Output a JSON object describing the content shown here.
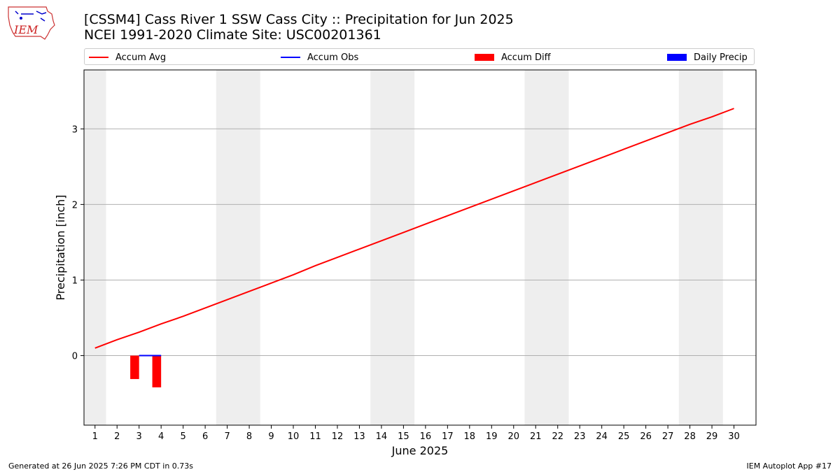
{
  "header": {
    "logo_text": "IEM",
    "title_line1": "[CSSM4] Cass River 1 SSW Cass City :: Precipitation for Jun 2025",
    "title_line2": "NCEI 1991-2020 Climate Site: USC00201361"
  },
  "footer": {
    "generated": "Generated at 26 Jun 2025 7:26 PM CDT in 0.73s",
    "app": "IEM Autoplot App #17"
  },
  "chart_data": {
    "type": "line",
    "xlabel": "June 2025",
    "ylabel": "Precipitation [inch]",
    "xlim": [
      0.5,
      31.0
    ],
    "ylim": [
      -0.92,
      3.78
    ],
    "yticks": [
      0,
      1,
      2,
      3
    ],
    "xticks": [
      1,
      2,
      3,
      4,
      5,
      6,
      7,
      8,
      9,
      10,
      11,
      12,
      13,
      14,
      15,
      16,
      17,
      18,
      19,
      20,
      21,
      22,
      23,
      24,
      25,
      26,
      27,
      28,
      29,
      30
    ],
    "grid": "horizontal",
    "legend_position": "top",
    "weekend_bands": [
      [
        0.5,
        1.5
      ],
      [
        6.5,
        8.5
      ],
      [
        13.5,
        15.5
      ],
      [
        20.5,
        22.5
      ],
      [
        27.5,
        29.5
      ]
    ],
    "band_color": "#eeeeee",
    "legend": [
      {
        "label": "Accum Avg",
        "kind": "line",
        "color": "#ff0000"
      },
      {
        "label": "Accum Obs",
        "kind": "line",
        "color": "#0000ff"
      },
      {
        "label": "Accum Diff",
        "kind": "bar",
        "color": "#ff0000"
      },
      {
        "label": "Daily Precip",
        "kind": "bar",
        "color": "#0000ff"
      }
    ],
    "series": [
      {
        "name": "Accum Avg",
        "color": "#ff0000",
        "x": [
          1,
          2,
          3,
          4,
          5,
          6,
          7,
          8,
          9,
          10,
          11,
          12,
          13,
          14,
          15,
          16,
          17,
          18,
          19,
          20,
          21,
          22,
          23,
          24,
          25,
          26,
          27,
          28,
          29,
          30
        ],
        "values": [
          0.1,
          0.21,
          0.31,
          0.42,
          0.52,
          0.63,
          0.74,
          0.85,
          0.96,
          1.07,
          1.19,
          1.3,
          1.41,
          1.52,
          1.63,
          1.74,
          1.85,
          1.96,
          2.07,
          2.18,
          2.29,
          2.4,
          2.51,
          2.62,
          2.73,
          2.84,
          2.95,
          3.06,
          3.16,
          3.27
        ]
      },
      {
        "name": "Accum Obs",
        "color": "#0000ff",
        "x": [
          3,
          4
        ],
        "values": [
          0.0,
          0.0
        ]
      },
      {
        "name": "Accum Diff",
        "color": "#ff0000",
        "kind": "bar",
        "x": [
          3,
          4
        ],
        "values": [
          -0.31,
          -0.42
        ]
      },
      {
        "name": "Daily Precip",
        "color": "#0000ff",
        "kind": "bar",
        "x": [
          3,
          4
        ],
        "values": [
          0.0,
          0.0
        ]
      }
    ]
  }
}
